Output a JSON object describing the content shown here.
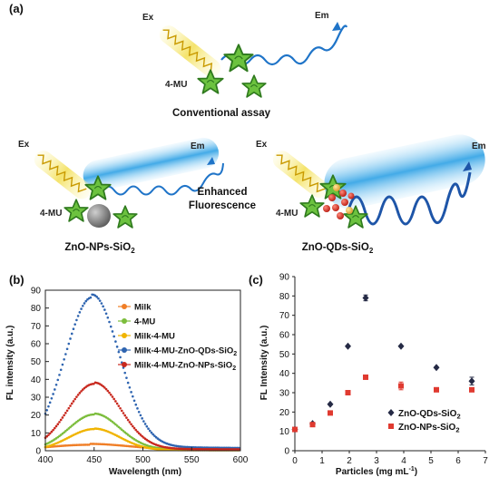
{
  "panel_a": {
    "label": "(a)",
    "top": {
      "ex": "Ex",
      "em": "Em",
      "fluor": "4-MU",
      "caption": "Conventional assay"
    },
    "left": {
      "ex": "Ex",
      "em": "Em",
      "fluor": "4-MU",
      "caption": "ZnO-NPs-SiO",
      "caption_sub": "2"
    },
    "right": {
      "ex": "Ex",
      "em": "Em",
      "fluor": "4-MU",
      "caption": "ZnO-QDs-SiO",
      "caption_sub": "2"
    },
    "middle_line1": "Enhanced",
    "middle_line2": "Fluorescence",
    "colors": {
      "excitation": "#f0e060",
      "emission": "#2a8fd6",
      "star": "#5fb83a",
      "np": "#8a8a8a",
      "qd": "#d42a1e"
    }
  },
  "chart_data": [
    {
      "type": "line",
      "panel_label": "(b)",
      "xlabel": "Wavelength (nm)",
      "ylabel": "FL intensity (a.u.)",
      "xlim": [
        400,
        600
      ],
      "ylim": [
        0,
        90
      ],
      "xticks": [
        "400",
        "450",
        "500",
        "550",
        "600"
      ],
      "yticks": [
        "0",
        "10",
        "20",
        "30",
        "40",
        "50",
        "60",
        "70",
        "80",
        "90"
      ],
      "legend_position": "top-right",
      "series": [
        {
          "name": "Milk",
          "color": "#f07e26",
          "peak_x": 445,
          "peak_y": 3,
          "sigma": 40,
          "tail": 1.0
        },
        {
          "name": "4-MU",
          "color": "#7cbd3c",
          "peak_x": 450,
          "peak_y": 20,
          "sigma": 26,
          "tail": 1.0
        },
        {
          "name": "Milk-4-MU",
          "color": "#f0b400",
          "peak_x": 450,
          "peak_y": 12,
          "sigma": 26,
          "tail": 0.5
        },
        {
          "name": "Milk-4-MU-ZnO-QDs-SiO",
          "name_sub": "2",
          "color": "#2e64b0",
          "peak_x": 448,
          "peak_y": 85,
          "sigma": 28,
          "tail": 3.0
        },
        {
          "name": "Milk-4-MU-ZnO-NPs-SiO",
          "name_sub": "2",
          "color": "#c8281e",
          "peak_x": 450,
          "peak_y": 37,
          "sigma": 27,
          "tail": 1.5
        }
      ]
    },
    {
      "type": "scatter",
      "panel_label": "(c)",
      "xlabel": "Particles (mg mL",
      "xlabel_sup": "-1",
      "xlabel_end": ")",
      "ylabel": "FL Intensity (a.u.)",
      "xlim": [
        0,
        7
      ],
      "ylim": [
        0,
        90
      ],
      "xticks": [
        "0",
        "1",
        "2",
        "3",
        "4",
        "5",
        "6",
        "7"
      ],
      "yticks": [
        "0",
        "10",
        "20",
        "30",
        "40",
        "50",
        "60",
        "70",
        "80",
        "90"
      ],
      "legend_position": "bottom-right",
      "series": [
        {
          "name": "ZnO-QDs-SiO",
          "name_sub": "2",
          "marker": "diamond",
          "color": "#252a45",
          "x": [
            0,
            0.65,
            1.3,
            1.95,
            2.6,
            3.9,
            5.2,
            6.5
          ],
          "y": [
            11,
            14,
            24,
            54,
            79,
            54,
            43,
            36
          ],
          "err": [
            0,
            0,
            0,
            0,
            1.5,
            0,
            0,
            2
          ]
        },
        {
          "name": "ZnO-NPs-SiO",
          "name_sub": "2",
          "marker": "square",
          "color": "#e03a30",
          "x": [
            0,
            0.65,
            1.3,
            1.95,
            2.6,
            3.9,
            5.2,
            6.5
          ],
          "y": [
            11,
            13.5,
            19.5,
            30,
            38,
            33.5,
            31.5,
            31.5
          ],
          "err": [
            0,
            1,
            0,
            0,
            0,
            2,
            0,
            1
          ]
        }
      ]
    }
  ]
}
